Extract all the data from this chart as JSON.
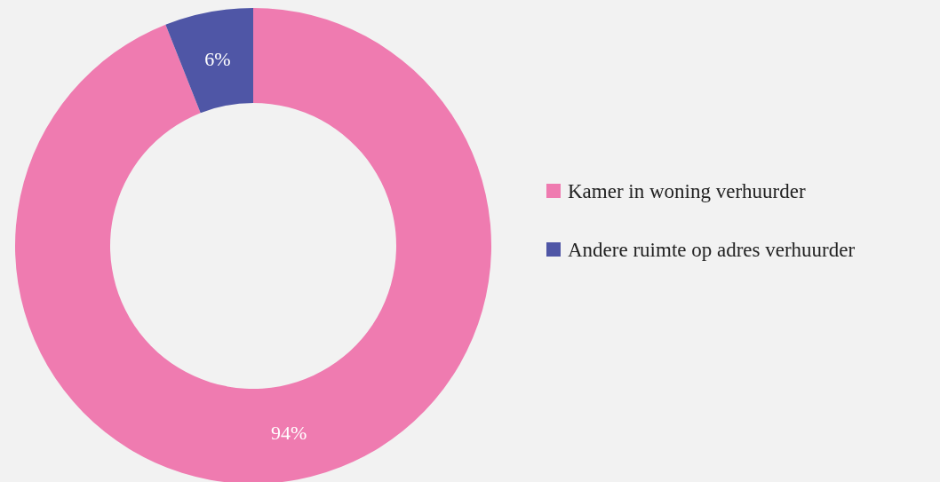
{
  "chart_data": {
    "type": "donut",
    "categories": [
      "Kamer in woning verhuurder",
      "Andere ruimte op adres verhuurder"
    ],
    "values": [
      94,
      6
    ],
    "colors": [
      "#ef7bb0",
      "#4f56a6"
    ],
    "value_labels": [
      "94%",
      "6%"
    ],
    "legend": "right"
  }
}
